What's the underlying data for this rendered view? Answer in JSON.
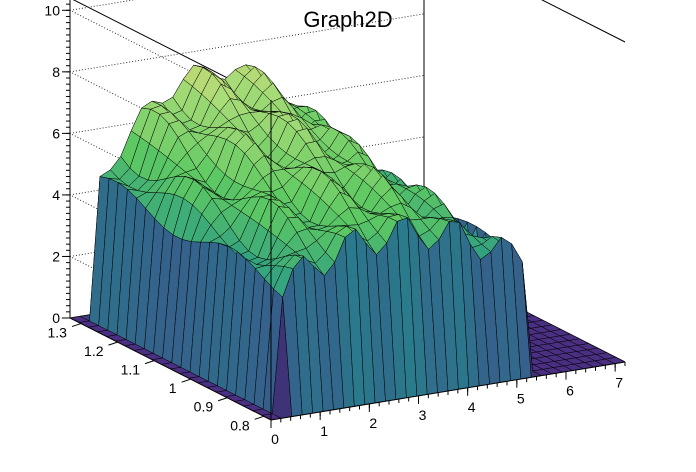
{
  "chart_data": {
    "type": "surface3d",
    "title": "Graph2D",
    "xlabel": "",
    "ylabel": "",
    "zlabel": "",
    "x_ticks": [
      "0",
      "1",
      "2",
      "3",
      "4",
      "5",
      "6",
      "7"
    ],
    "y_ticks": [
      "0.8",
      "0.9",
      "1",
      "1.1",
      "1.2",
      "1.3"
    ],
    "z_ticks": [
      "0",
      "2",
      "4",
      "6",
      "8",
      "10"
    ],
    "xlim": [
      0,
      7.2
    ],
    "ylim": [
      0.78,
      1.33
    ],
    "zlim": [
      0,
      10.4
    ],
    "grid": true,
    "colormap": "viridis",
    "surface": {
      "x_start": 0.25,
      "x_end": 5.3,
      "y_start": 0.79,
      "y_end": 1.32,
      "base_level": 3.8,
      "peak_level": 8.5
    }
  }
}
